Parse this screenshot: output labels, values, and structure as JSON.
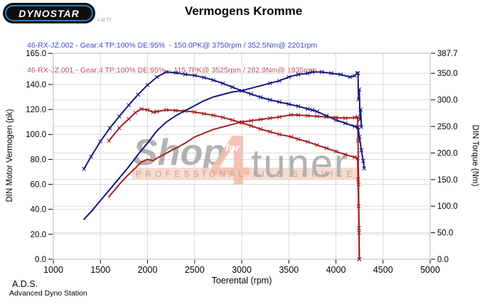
{
  "header": {
    "logo_text": "DYNOSTAR",
    "logo_version": "v.32 TT",
    "title": "Vermogens Kromme"
  },
  "legend": {
    "runs": [
      {
        "label": "46-RX-JZ.002 - Gear:4 TP:100% DE:95%  - 150.0PK@ 3750rpm / 352.5Nm@ 2201rpm",
        "color": "#4343C8"
      },
      {
        "label": "46-RX-JZ.001 - Gear:4 TP:100% DE:95%  - 115.7PK@ 3525rpm / 282.9Nm@ 1935rpm",
        "color": "#C25252"
      }
    ]
  },
  "colors": {
    "curve_blue": "#17177F",
    "curve_red": "#A32020",
    "grid": "#dadae0",
    "border": "#b8b8b8",
    "tick": "#000000",
    "watermark_gray": "#a5a5a5",
    "watermark_salmon": "#f2b39f",
    "watermark_band_bg": "#f6c9b8",
    "watermark_band_text": "#9b9b9b",
    "watermark_for": "#ffffff"
  },
  "watermark": {
    "shop": "Shop",
    "for": "for",
    "four": "4",
    "tuner": "tuner",
    "band": "PROFESSIONAL FILE SERVICE"
  },
  "footer": {
    "abbr": "A.D.S.",
    "name": "Advanced Dyno Station"
  },
  "chart_data": {
    "type": "line",
    "title": "Vermogens Kromme",
    "xlabel": "Toerental (rpm)",
    "ylabel_left": "DIN Motor Vermogen (pk)",
    "ylabel_right": "DIN Torque (Nm)",
    "grid": true,
    "xlim": [
      1000,
      5000
    ],
    "ylim_left": [
      0,
      165
    ],
    "ylim_right": [
      0,
      387.7
    ],
    "x_ticks": [
      1000,
      1500,
      2000,
      2500,
      3000,
      3500,
      4000,
      4500,
      5000
    ],
    "x_tick_labels": [
      "1000",
      "1500",
      "2000",
      "2500",
      "3000",
      "3500",
      "4000",
      "4500",
      "5000"
    ],
    "y_ticks_left_values": [
      165,
      140,
      120,
      100,
      80,
      60,
      40,
      20,
      0
    ],
    "y_ticks_left_labels": [
      "165.0",
      "140.0",
      "120.0",
      "100.0",
      "80.0",
      "60.0",
      "40.0",
      "20.0",
      "0.0"
    ],
    "y_ticks_right_values": [
      387.7,
      350,
      300,
      250,
      200,
      150,
      100,
      50,
      0
    ],
    "y_ticks_right_labels": [
      "387.7",
      "350.0",
      "300.0",
      "250.0",
      "200.0",
      "150.0",
      "100.0",
      "50.0",
      "0.0"
    ],
    "series": [
      {
        "name": "torque-run-001",
        "axis": "right",
        "color": "#A32020",
        "marker_from": 0,
        "peak_label": "282.9Nm@ 1935rpm",
        "points": [
          [
            1590,
            223
          ],
          [
            1700,
            247
          ],
          [
            1800,
            264
          ],
          [
            1870,
            276
          ],
          [
            1935,
            282.9
          ],
          [
            2000,
            281
          ],
          [
            2060,
            277
          ],
          [
            2100,
            278
          ],
          [
            2200,
            281
          ],
          [
            2300,
            280
          ],
          [
            2400,
            279
          ],
          [
            2500,
            277
          ],
          [
            2600,
            274
          ],
          [
            2700,
            271
          ],
          [
            2800,
            267
          ],
          [
            2900,
            262
          ],
          [
            3000,
            257
          ],
          [
            3100,
            251
          ],
          [
            3200,
            245
          ],
          [
            3300,
            240
          ],
          [
            3400,
            235
          ],
          [
            3525,
            230.5
          ],
          [
            3600,
            226
          ],
          [
            3700,
            221
          ],
          [
            3800,
            215
          ],
          [
            3900,
            209
          ],
          [
            4000,
            203
          ],
          [
            4100,
            197
          ],
          [
            4200,
            192
          ],
          [
            4230,
            190
          ],
          [
            4235,
            150
          ],
          [
            4240,
            100
          ],
          [
            4245,
            50
          ],
          [
            4248,
            0
          ]
        ]
      },
      {
        "name": "power-run-001",
        "axis": "left",
        "color": "#A32020",
        "marker_from": 3000,
        "peak_label": "115.7PK@ 3525rpm",
        "points": [
          [
            1590,
            50
          ],
          [
            1700,
            60
          ],
          [
            1800,
            68
          ],
          [
            1870,
            73
          ],
          [
            1935,
            78
          ],
          [
            2000,
            80
          ],
          [
            2060,
            79
          ],
          [
            2100,
            81
          ],
          [
            2200,
            85
          ],
          [
            2300,
            89
          ],
          [
            2400,
            93
          ],
          [
            2500,
            98
          ],
          [
            2600,
            101
          ],
          [
            2700,
            104
          ],
          [
            2800,
            106
          ],
          [
            2900,
            108
          ],
          [
            3000,
            110
          ],
          [
            3100,
            111
          ],
          [
            3200,
            112
          ],
          [
            3300,
            113
          ],
          [
            3400,
            114
          ],
          [
            3525,
            115.7
          ],
          [
            3600,
            115.5
          ],
          [
            3700,
            115
          ],
          [
            3800,
            114.5
          ],
          [
            3900,
            114
          ],
          [
            4000,
            113.5
          ],
          [
            4100,
            113
          ],
          [
            4200,
            113.5
          ],
          [
            4230,
            114
          ],
          [
            4235,
            95
          ],
          [
            4240,
            60
          ],
          [
            4245,
            25
          ],
          [
            4248,
            0
          ]
        ]
      },
      {
        "name": "torque-run-002",
        "axis": "right",
        "color": "#17177F",
        "marker_from": 0,
        "peak_label": "352.5Nm@ 2201rpm",
        "points": [
          [
            1325,
            170
          ],
          [
            1400,
            193
          ],
          [
            1500,
            222
          ],
          [
            1600,
            247
          ],
          [
            1700,
            269
          ],
          [
            1800,
            290
          ],
          [
            1900,
            310
          ],
          [
            2000,
            328
          ],
          [
            2100,
            343
          ],
          [
            2201,
            352.5
          ],
          [
            2300,
            351
          ],
          [
            2400,
            348
          ],
          [
            2500,
            346
          ],
          [
            2600,
            342
          ],
          [
            2700,
            337
          ],
          [
            2800,
            331
          ],
          [
            2900,
            324
          ],
          [
            3000,
            317
          ],
          [
            3100,
            311
          ],
          [
            3200,
            305
          ],
          [
            3300,
            300
          ],
          [
            3400,
            296
          ],
          [
            3500,
            292
          ],
          [
            3600,
            288
          ],
          [
            3700,
            283
          ],
          [
            3750,
            281
          ],
          [
            3800,
            278
          ],
          [
            3900,
            270
          ],
          [
            4000,
            262
          ],
          [
            4100,
            256
          ],
          [
            4200,
            250
          ],
          [
            4235,
            248
          ],
          [
            4250,
            230
          ],
          [
            4270,
            205
          ],
          [
            4290,
            185
          ],
          [
            4300,
            171
          ]
        ]
      },
      {
        "name": "power-run-002",
        "axis": "left",
        "color": "#17177F",
        "marker_from": 3300,
        "peak_label": "150.0PK@ 3750rpm",
        "points": [
          [
            1325,
            32
          ],
          [
            1400,
            38
          ],
          [
            1500,
            47
          ],
          [
            1600,
            56
          ],
          [
            1700,
            65
          ],
          [
            1800,
            74
          ],
          [
            1900,
            84
          ],
          [
            2000,
            93
          ],
          [
            2100,
            103
          ],
          [
            2201,
            110
          ],
          [
            2300,
            115
          ],
          [
            2400,
            119
          ],
          [
            2500,
            123
          ],
          [
            2600,
            127
          ],
          [
            2700,
            130
          ],
          [
            2800,
            132
          ],
          [
            2900,
            134
          ],
          [
            3000,
            135
          ],
          [
            3100,
            137
          ],
          [
            3200,
            139
          ],
          [
            3300,
            141
          ],
          [
            3400,
            143
          ],
          [
            3500,
            146
          ],
          [
            3600,
            148
          ],
          [
            3700,
            149
          ],
          [
            3750,
            150
          ],
          [
            3850,
            150
          ],
          [
            3950,
            149
          ],
          [
            4050,
            148
          ],
          [
            4150,
            146
          ],
          [
            4200,
            147
          ],
          [
            4225,
            149
          ],
          [
            4235,
            149
          ],
          [
            4240,
            128
          ],
          [
            4248,
            136
          ],
          [
            4256,
            112
          ],
          [
            4262,
            120
          ],
          [
            4270,
            106
          ]
        ]
      }
    ]
  }
}
